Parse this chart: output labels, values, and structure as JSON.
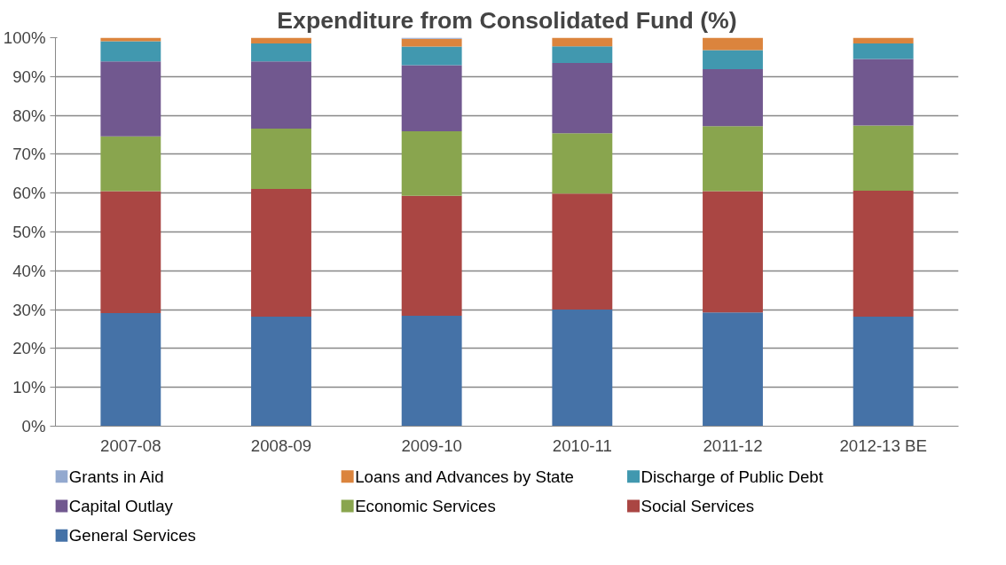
{
  "chart_data": {
    "type": "bar",
    "title": "Expenditure from Consolidated Fund (%)",
    "stacked": true,
    "categories": [
      "2007-08",
      "2008-09",
      "2009-10",
      "2010-11",
      "2011-12",
      "2012-13 BE"
    ],
    "series": [
      {
        "name": "General Services",
        "color": "#4572a7",
        "values": [
          29.1,
          28.2,
          28.4,
          30.0,
          29.3,
          28.2
        ]
      },
      {
        "name": "Social Services",
        "color": "#aa4643",
        "values": [
          31.4,
          32.9,
          30.9,
          29.9,
          31.2,
          32.4
        ]
      },
      {
        "name": "Economic Services",
        "color": "#89a54e",
        "values": [
          14.1,
          15.5,
          16.6,
          15.5,
          16.7,
          16.8
        ]
      },
      {
        "name": "Capital Outlay",
        "color": "#71588f",
        "values": [
          19.3,
          17.3,
          17.0,
          18.1,
          14.7,
          17.1
        ]
      },
      {
        "name": "Discharge of Public Debt",
        "color": "#4198af",
        "values": [
          5.2,
          4.6,
          4.8,
          4.3,
          4.9,
          4.0
        ]
      },
      {
        "name": "Loans and Advances by State",
        "color": "#db843d",
        "values": [
          0.9,
          1.5,
          2.0,
          2.2,
          3.2,
          1.5
        ]
      },
      {
        "name": "Grants in Aid",
        "color": "#93a9cf",
        "values": [
          0,
          0,
          0.3,
          0,
          0,
          0
        ]
      }
    ],
    "ylim": [
      0,
      100
    ],
    "yticks": [
      {
        "value": 0,
        "label": "0%"
      },
      {
        "value": 10,
        "label": "10%"
      },
      {
        "value": 20,
        "label": "20%"
      },
      {
        "value": 30,
        "label": "30%"
      },
      {
        "value": 40,
        "label": "40%"
      },
      {
        "value": 50,
        "label": "50%"
      },
      {
        "value": 60,
        "label": "60%"
      },
      {
        "value": 70,
        "label": "70%"
      },
      {
        "value": 80,
        "label": "80%"
      },
      {
        "value": 90,
        "label": "90%"
      },
      {
        "value": 100,
        "label": "100%"
      }
    ],
    "grid": "y",
    "legend": "bottom"
  }
}
